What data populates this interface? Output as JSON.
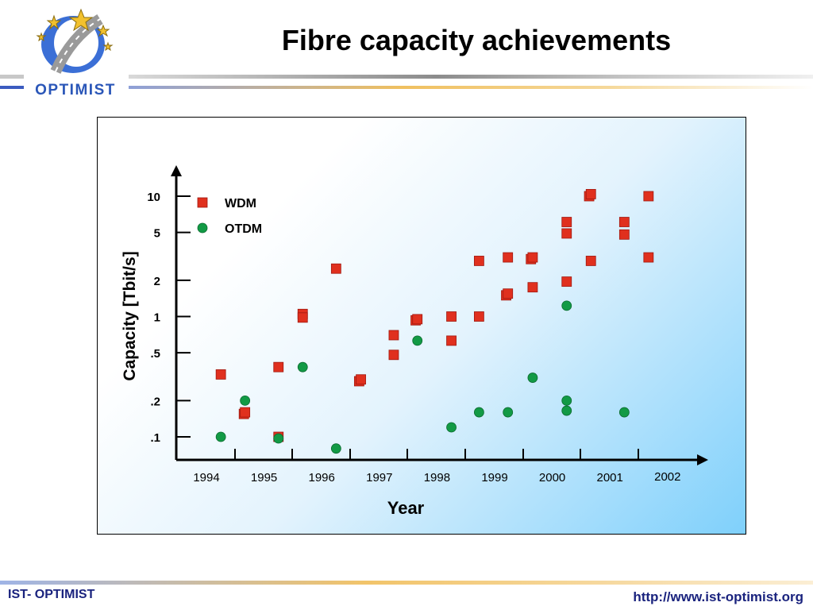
{
  "logo": {
    "text": "OPTIMIST"
  },
  "page": {
    "title": "Fibre capacity achievements"
  },
  "footer": {
    "left": "IST- OPTIMIST",
    "right": "http://www.ist-optimist.org"
  },
  "chart_data": {
    "type": "scatter",
    "title": "",
    "xlabel": "Year",
    "ylabel": "Capacity [Tbit/s]",
    "y_scale": "log",
    "xlim": [
      1993.6,
      2002.2
    ],
    "ylim": [
      0.08,
      14
    ],
    "x_ticks": [
      "1994",
      "1995",
      "1996",
      "1997",
      "1998",
      "1999",
      "2000",
      "2001",
      "2002"
    ],
    "y_ticks": [
      {
        "value": 10,
        "label": "10"
      },
      {
        "value": 5,
        "label": "5"
      },
      {
        "value": 2,
        "label": "2"
      },
      {
        "value": 1,
        "label": "1"
      },
      {
        "value": 0.5,
        "label": ".5"
      },
      {
        "value": 0.2,
        "label": ".2"
      },
      {
        "value": 0.1,
        "label": ".1"
      }
    ],
    "legend_position": "top-left",
    "grid": false,
    "series": [
      {
        "name": "WDM",
        "marker": "square",
        "color": "#e0301e",
        "points": [
          [
            1994.25,
            0.33
          ],
          [
            1994.65,
            0.155
          ],
          [
            1994.67,
            0.16
          ],
          [
            1995.25,
            0.38
          ],
          [
            1995.25,
            0.1
          ],
          [
            1995.67,
            1.05
          ],
          [
            1995.67,
            0.98
          ],
          [
            1996.25,
            2.5
          ],
          [
            1996.65,
            0.29
          ],
          [
            1996.68,
            0.3
          ],
          [
            1997.25,
            0.7
          ],
          [
            1997.25,
            0.48
          ],
          [
            1997.63,
            0.93
          ],
          [
            1997.66,
            0.95
          ],
          [
            1998.25,
            1.0
          ],
          [
            1998.25,
            0.63
          ],
          [
            1998.73,
            2.9
          ],
          [
            1998.73,
            1.0
          ],
          [
            1999.2,
            1.5
          ],
          [
            1999.23,
            1.55
          ],
          [
            1999.23,
            3.1
          ],
          [
            1999.63,
            3.0
          ],
          [
            1999.66,
            3.1
          ],
          [
            1999.66,
            1.75
          ],
          [
            2000.25,
            6.1
          ],
          [
            2000.25,
            4.9
          ],
          [
            2000.25,
            1.95
          ],
          [
            2000.64,
            10.0
          ],
          [
            2000.67,
            10.4
          ],
          [
            2000.67,
            2.9
          ],
          [
            2001.25,
            6.1
          ],
          [
            2001.25,
            4.8
          ],
          [
            2001.67,
            10.0
          ],
          [
            2001.67,
            3.1
          ]
        ]
      },
      {
        "name": "OTDM",
        "marker": "circle",
        "color": "#129a45",
        "points": [
          [
            1994.25,
            0.1
          ],
          [
            1994.67,
            0.2
          ],
          [
            1995.25,
            0.097
          ],
          [
            1995.67,
            0.38
          ],
          [
            1996.25,
            0.08
          ],
          [
            1997.66,
            0.63
          ],
          [
            1998.25,
            0.12
          ],
          [
            1998.73,
            0.16
          ],
          [
            1999.23,
            0.16
          ],
          [
            1999.66,
            0.31
          ],
          [
            2000.25,
            1.23
          ],
          [
            2000.25,
            0.2
          ],
          [
            2000.25,
            0.165
          ],
          [
            2001.25,
            0.16
          ]
        ]
      }
    ]
  }
}
